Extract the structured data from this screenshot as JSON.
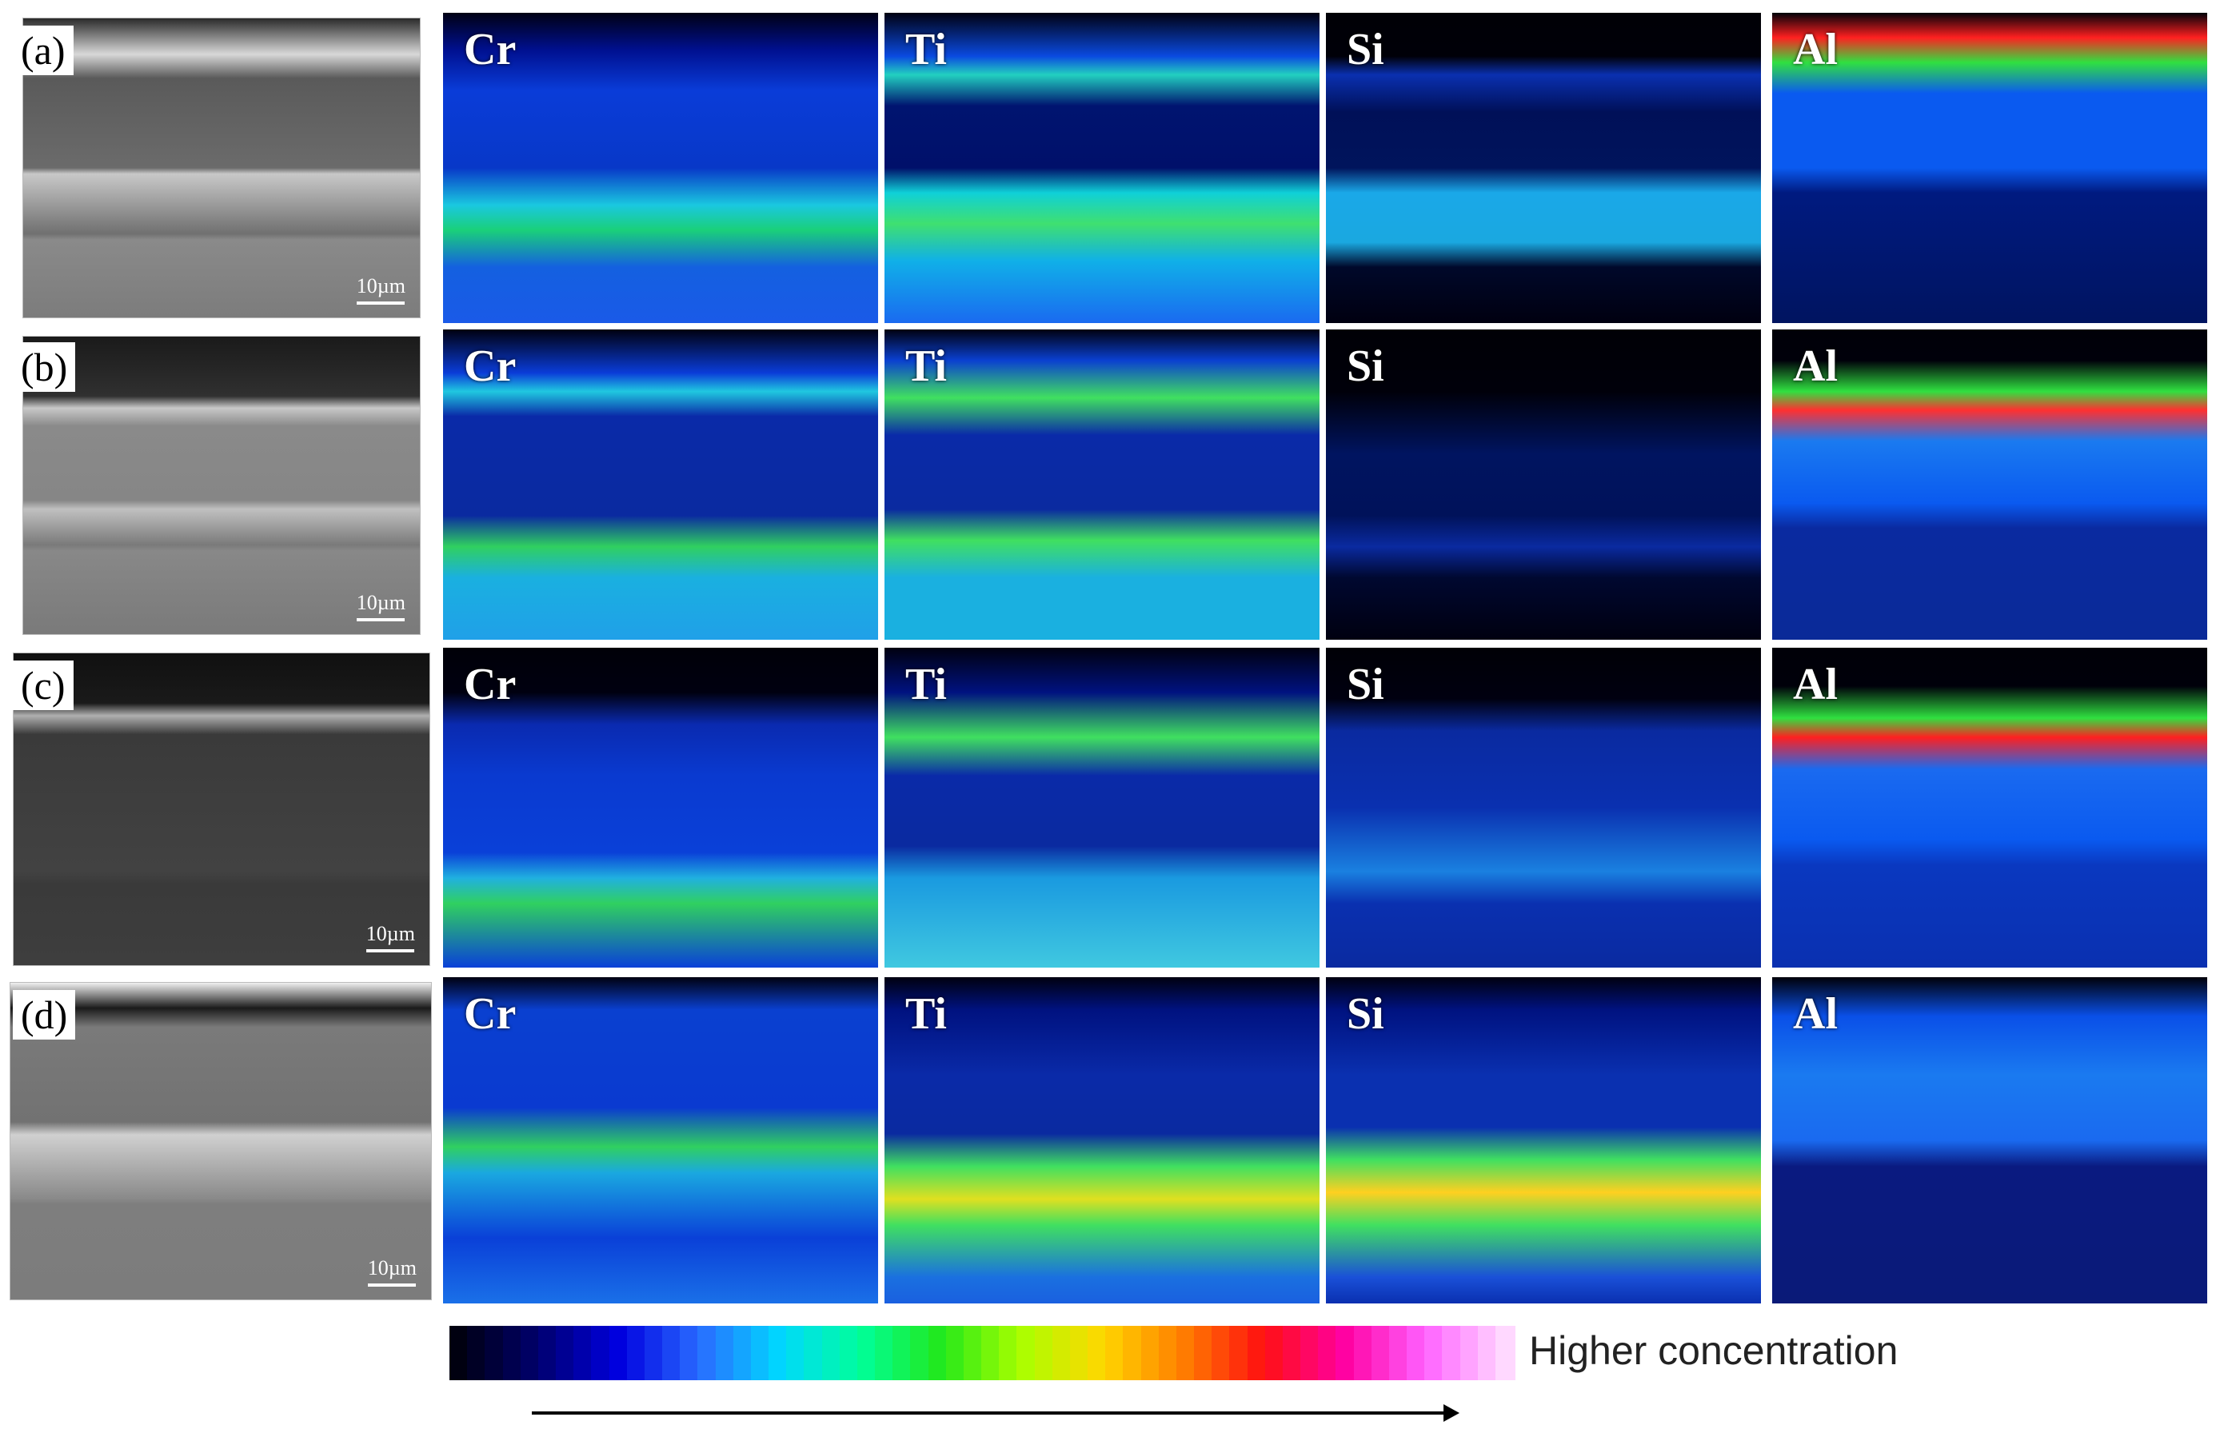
{
  "rows": [
    {
      "label": "(a)",
      "scale_label": "10µm",
      "elements": [
        "Cr",
        "Ti",
        "Si",
        "Al"
      ]
    },
    {
      "label": "(b)",
      "scale_label": "10µm",
      "elements": [
        "Cr",
        "Ti",
        "Si",
        "Al"
      ]
    },
    {
      "label": "(c)",
      "scale_label": "10µm",
      "elements": [
        "Cr",
        "Ti",
        "Si",
        "Al"
      ]
    },
    {
      "label": "(d)",
      "scale_label": "10µm",
      "elements": [
        "Cr",
        "Ti",
        "Si",
        "Al"
      ]
    }
  ],
  "colorbar": {
    "label": "Higher concentration",
    "colors": [
      "#000010",
      "#00006e",
      "#0000e0",
      "#2a6cff",
      "#00d8ff",
      "#00ff9a",
      "#22e81a",
      "#aaff00",
      "#ffd700",
      "#ff7f00",
      "#ff1010",
      "#ff00a0",
      "#ff60ff",
      "#ffd8ff"
    ]
  }
}
